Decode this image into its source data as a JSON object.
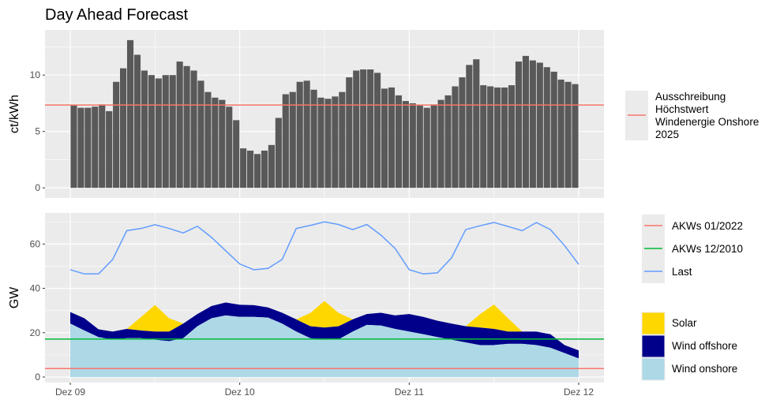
{
  "title": "Day Ahead Forecast",
  "chart_data": [
    {
      "type": "bar",
      "title": "Day Ahead Forecast",
      "ylabel": "ct/kWh",
      "xlabel": "",
      "ylim": [
        -0.9,
        14.0
      ],
      "y_ticks": [
        "0",
        "5",
        "10"
      ],
      "y_tick_values": [
        0,
        5,
        10
      ],
      "x_ticks": [
        "Dez 09",
        "Dez 10",
        "Dez 11",
        "Dez 12"
      ],
      "x_unit": "hours since Dez 09 00:00",
      "bar_hours": [
        0,
        1,
        2,
        3,
        4,
        5,
        6,
        7,
        8,
        9,
        10,
        11,
        12,
        13,
        14,
        15,
        16,
        17,
        18,
        19,
        20,
        21,
        22,
        23,
        24,
        25,
        26,
        27,
        28,
        29,
        30,
        31,
        32,
        33,
        34,
        35,
        36,
        37,
        38,
        39,
        40,
        41,
        42,
        43,
        44,
        45,
        46,
        47,
        48,
        49,
        50,
        51,
        52,
        53,
        54,
        55,
        56,
        57,
        58,
        59,
        60,
        61,
        62,
        63,
        64,
        65,
        66,
        67,
        68,
        69,
        70,
        71
      ],
      "values": [
        7.3,
        7.1,
        7.1,
        7.2,
        7.4,
        6.8,
        9.4,
        10.6,
        13.1,
        11.8,
        10.4,
        10.0,
        9.7,
        10.0,
        10.0,
        11.2,
        10.8,
        10.4,
        9.5,
        8.5,
        8.0,
        7.8,
        7.2,
        6.0,
        3.5,
        3.3,
        3.0,
        3.3,
        3.8,
        6.2,
        8.3,
        8.5,
        9.4,
        9.5,
        8.7,
        8.0,
        7.9,
        8.1,
        8.5,
        9.8,
        10.4,
        10.5,
        10.5,
        10.2,
        8.8,
        8.9,
        8.2,
        7.7,
        7.5,
        7.3,
        7.1,
        7.4,
        7.8,
        8.2,
        9.0,
        9.8,
        10.9,
        11.4,
        9.1,
        9.0,
        8.9,
        8.9,
        9.1,
        11.2,
        11.7,
        11.3,
        11.1,
        10.7,
        10.3,
        9.6,
        9.4,
        9.2
      ],
      "hlines": [
        {
          "name": "Ausschreibung Höchstwert Windenergie Onshore 2025",
          "value": 7.35,
          "color": "#F8766D"
        }
      ],
      "bar_color": "#595959",
      "legend": {
        "position": "right",
        "label_lines": [
          "Ausschreibung",
          "Höchstwert",
          "Windenergie Onshore",
          "2025"
        ]
      },
      "grid": true
    },
    {
      "type": "area",
      "ylabel": "GW",
      "xlabel": "",
      "ylim": [
        -2.5,
        74
      ],
      "y_ticks": [
        "0",
        "20",
        "40",
        "60"
      ],
      "y_tick_values": [
        0,
        20,
        40,
        60
      ],
      "x_ticks": [
        "Dez 09",
        "Dez 10",
        "Dez 11",
        "Dez 12"
      ],
      "x_unit": "hours since Dez 09 00:00",
      "x": [
        0,
        2,
        4,
        6,
        8,
        10,
        12,
        14,
        16,
        18,
        20,
        22,
        24,
        26,
        28,
        30,
        32,
        34,
        36,
        38,
        40,
        42,
        44,
        46,
        48,
        50,
        52,
        54,
        56,
        58,
        60,
        62,
        64,
        66,
        68,
        70,
        72
      ],
      "series": [
        {
          "name": "Wind onshore",
          "color": "#ADD8E6",
          "stacked": true,
          "values": [
            24.1,
            21,
            18,
            16.8,
            17.5,
            17.5,
            16.8,
            16.2,
            17.5,
            22.9,
            26.5,
            27.8,
            27.1,
            27.1,
            26.8,
            24.1,
            20.5,
            17.5,
            16.8,
            17,
            20.5,
            23.5,
            23.2,
            21.7,
            20.5,
            19.3,
            18,
            16.8,
            15.6,
            14.4,
            14.4,
            15,
            15,
            14.4,
            13.2,
            10.8,
            8.4
          ]
        },
        {
          "name": "Wind offshore",
          "color": "#00008B",
          "stacked": true,
          "values": [
            5.2,
            5.5,
            3.5,
            3.7,
            4.2,
            3.5,
            3.7,
            4.3,
            6.6,
            5.5,
            5.5,
            5.8,
            5.5,
            5.3,
            4.6,
            4.9,
            5.5,
            5.4,
            5.5,
            5.9,
            5.5,
            4.9,
            5.8,
            6.1,
            7.9,
            7.8,
            7.4,
            7.3,
            7.3,
            7.9,
            7.3,
            5.5,
            5.5,
            6.1,
            6.1,
            3.6,
            3.6
          ]
        },
        {
          "name": "Solar",
          "color": "#FFD700",
          "stacked": true,
          "values": [
            0,
            0,
            0,
            0,
            0,
            6,
            12,
            6,
            0,
            0,
            0,
            0,
            0,
            0,
            0,
            0,
            0,
            6,
            12,
            6,
            0,
            0,
            0,
            0,
            0,
            0,
            0,
            0,
            0,
            6,
            11,
            6,
            0,
            0,
            0,
            0,
            0
          ]
        },
        {
          "name": "Last",
          "color": "#619CFF",
          "type": "line",
          "values": [
            48.4,
            46.5,
            46.5,
            53,
            66,
            67,
            68.7,
            67,
            65,
            68,
            63,
            57,
            51,
            48.4,
            49,
            53,
            67,
            68.4,
            70,
            68.8,
            66.5,
            68.8,
            64,
            58,
            48.4,
            46.5,
            47,
            53.8,
            66.5,
            68.2,
            69.7,
            67.9,
            66,
            69.7,
            66.5,
            59.3,
            50.8
          ]
        }
      ],
      "hlines": [
        {
          "name": "AKWs 01/2022",
          "value": 3.8,
          "color": "#F8766D"
        },
        {
          "name": "AKWs 12/2010",
          "value": 17.1,
          "color": "#00BA38"
        }
      ],
      "legend_lines": [
        "AKWs 01/2022",
        "AKWs 12/2010",
        "Last"
      ],
      "legend_fills": [
        "Solar",
        "Wind offshore",
        "Wind onshore"
      ],
      "legend_position": "right",
      "grid": true
    }
  ]
}
